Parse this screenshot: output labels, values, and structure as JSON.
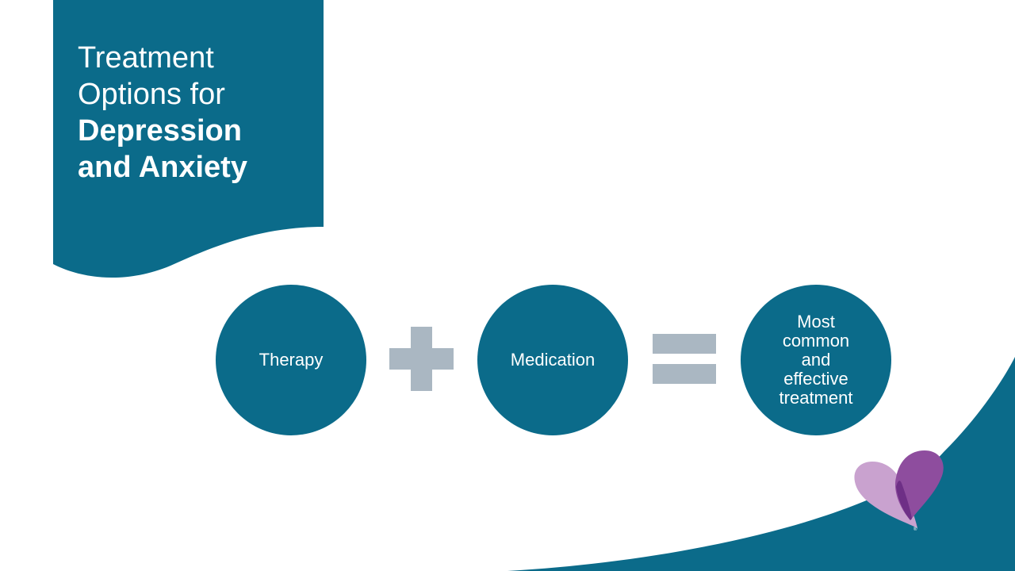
{
  "slide": {
    "title_line1": "Treatment",
    "title_line2": "Options for",
    "title_line3": "Depression",
    "title_line4": "and Anxiety"
  },
  "equation": {
    "term1": "Therapy",
    "operator1_icon": "plus-icon",
    "term2": "Medication",
    "operator2_icon": "equals-icon",
    "result": "Most common and effective treatment"
  },
  "logo": {
    "icon": "heart-logo-icon",
    "mark": "®"
  },
  "colors": {
    "teal": "#0b6b8a",
    "operator_gray": "#aab7c2",
    "heart_light": "#c9a2cf",
    "heart_dark": "#8e4d9e",
    "heart_overlap": "#6e2f86"
  }
}
